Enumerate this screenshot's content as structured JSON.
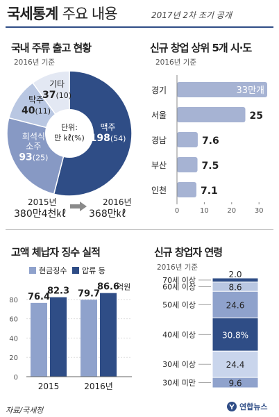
{
  "header": {
    "title_bold": "국세통계",
    "title_rest": "주요 내용",
    "subtitle": "2017년 2차 조기 공개"
  },
  "liquor": {
    "heading": "국내 주류 출고 현황",
    "basis": "2016년 기준",
    "center_label_1": "단위:",
    "center_label_2": "만 ㎘(%)",
    "from_year": "2015년",
    "from_value": "380만4천㎘",
    "to_year": "2016년",
    "to_value": "368만㎘",
    "colors": {
      "beer": "#2f4d86",
      "soju": "#8799c4",
      "takju": "#b9c7e2",
      "etc": "#e3e8f3"
    }
  },
  "startup": {
    "heading": "신규 창업 상위 5개 시·도",
    "basis": "2016년 기준",
    "unit_suffix": "만개",
    "bar_color": "#a6b3d3"
  },
  "collection": {
    "heading": "고액 체납자 징수 실적",
    "legend_cash": "현금징수",
    "legend_seize": "압류 등",
    "unit": "억원",
    "colors": {
      "cash": "#8fa2cc",
      "seize": "#2f4d86"
    }
  },
  "age": {
    "heading": "신규 창업자 연령",
    "basis": "2016년 기준"
  },
  "footer": {
    "source": "자료/국세청",
    "logo": "연합뉴스"
  },
  "chart_data": [
    {
      "type": "pie",
      "title": "국내 주류 출고 현황",
      "unit": "만 ㎘(%)",
      "slices": [
        {
          "label": "맥주",
          "value": 198,
          "pct": 54
        },
        {
          "label": "희석식 소주",
          "value": 93,
          "pct": 25
        },
        {
          "label": "탁주",
          "value": 40,
          "pct": 11
        },
        {
          "label": "기타",
          "value": 37,
          "pct": 10
        }
      ]
    },
    {
      "type": "bar",
      "orientation": "horizontal",
      "title": "신규 창업 상위 5개 시·도",
      "categories": [
        "경기",
        "서울",
        "경남",
        "부산",
        "인천"
      ],
      "values": [
        33,
        25,
        7.6,
        7.5,
        7.1
      ],
      "xlim": [
        0,
        33
      ],
      "xticks": [
        0,
        10,
        20,
        30
      ]
    },
    {
      "type": "bar",
      "title": "고액 체납자 징수 실적",
      "categories": [
        "2015",
        "2016년"
      ],
      "series": [
        {
          "name": "현금징수",
          "values": [
            76.4,
            79.7
          ]
        },
        {
          "name": "압류 등",
          "values": [
            82.3,
            86.6
          ]
        }
      ],
      "ylim": [
        0,
        95
      ],
      "yticks": [
        0,
        20,
        40,
        60,
        80
      ],
      "unit": "억원"
    },
    {
      "type": "bar",
      "stacked": true,
      "title": "신규 창업자 연령",
      "unit": "%",
      "segments": [
        {
          "label": "70세 이상",
          "value": 2.0,
          "color": "#2f4d86"
        },
        {
          "label": "60세 이상",
          "value": 8.6,
          "color": "#b9c7e2"
        },
        {
          "label": "50세 이상",
          "value": 24.6,
          "color": "#8fa2cc"
        },
        {
          "label": "40세 이상",
          "value": 30.8,
          "color": "#2f4d86"
        },
        {
          "label": "30세 이상",
          "value": 24.4,
          "color": "#c9d5ec"
        },
        {
          "label": "30세 미만",
          "value": 9.6,
          "color": "#8fa2cc"
        }
      ]
    }
  ]
}
